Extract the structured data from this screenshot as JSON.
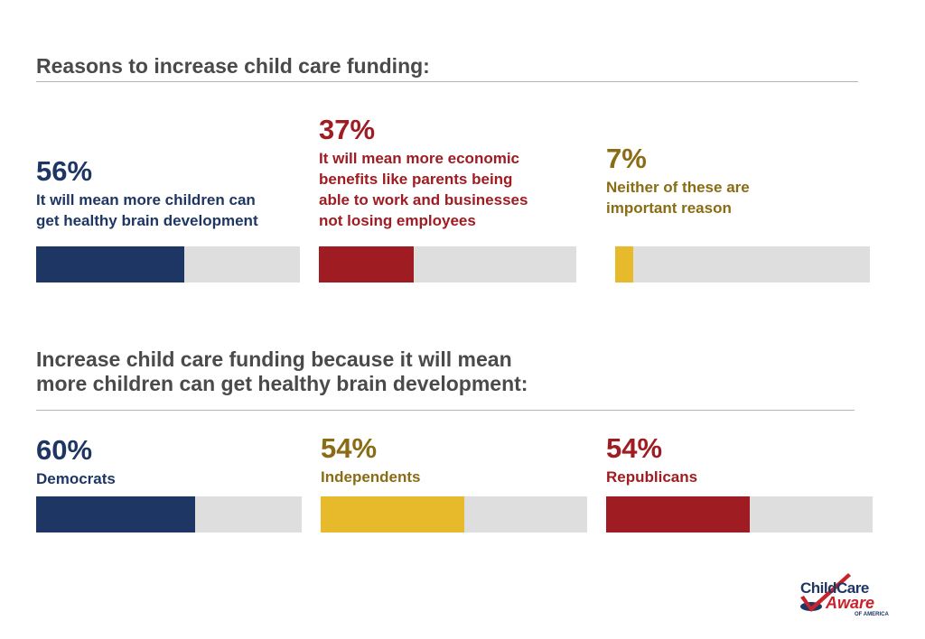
{
  "colors": {
    "navy": "#1e3663",
    "red": "#9e1c22",
    "gold_bar": "#e7ba2b",
    "gold_text": "#8a6c14",
    "track": "#dedede"
  },
  "chart_data": [
    {
      "type": "bar",
      "title": "Reasons to increase child care funding:",
      "xlim": [
        0,
        100
      ],
      "items": [
        {
          "value": 56,
          "value_label": "56%",
          "lines": [
            "It will mean more children can",
            "get healthy brain development"
          ],
          "color": "navy",
          "text_color": "navy"
        },
        {
          "value": 37,
          "value_label": "37%",
          "lines": [
            "It will mean more economic",
            "benefits like parents being",
            "able to work and businesses",
            "not losing employees"
          ],
          "color": "red",
          "text_color": "red"
        },
        {
          "value": 7,
          "value_label": "7%",
          "lines": [
            "Neither of these are",
            "important reason"
          ],
          "color": "gold_bar",
          "text_color": "gold_text"
        }
      ]
    },
    {
      "type": "bar",
      "title_lines": [
        "Increase child care funding because it will mean",
        "more children can get healthy brain development:"
      ],
      "xlim": [
        0,
        100
      ],
      "items": [
        {
          "value": 60,
          "value_label": "60%",
          "lines": [
            "Democrats"
          ],
          "color": "navy",
          "text_color": "navy"
        },
        {
          "value": 54,
          "value_label": "54%",
          "lines": [
            "Independents"
          ],
          "color": "gold_bar",
          "text_color": "gold_text"
        },
        {
          "value": 54,
          "value_label": "54%",
          "lines": [
            "Republicans"
          ],
          "color": "red",
          "text_color": "red"
        }
      ]
    }
  ],
  "logo": {
    "line1": "ChildCare",
    "line2": "Aware",
    "line3": "OF AMERICA"
  }
}
